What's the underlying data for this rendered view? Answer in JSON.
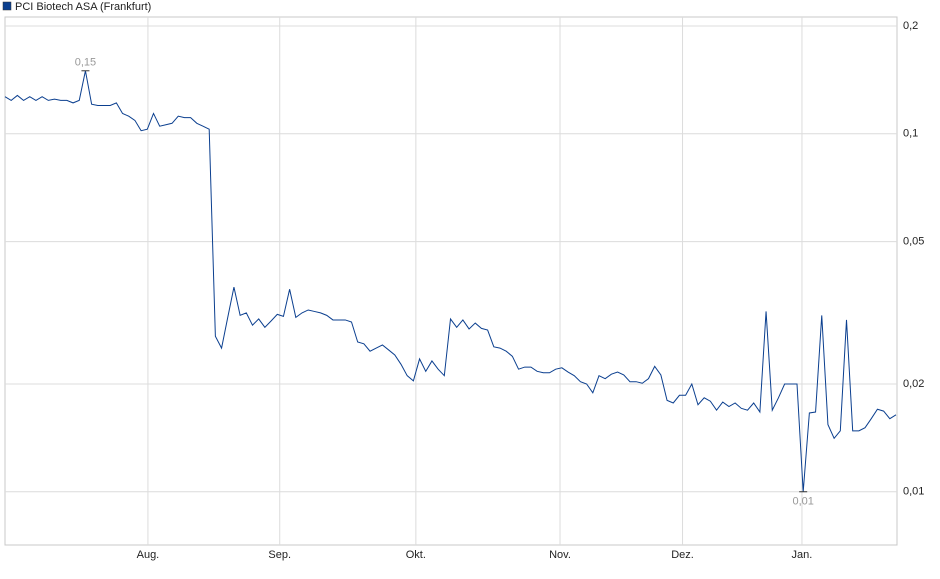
{
  "chart_data": {
    "type": "line",
    "series": [
      {
        "name": "PCI Biotech ASA (Frankfurt)",
        "color": "#0b3f8f",
        "x": [
          0,
          1,
          2,
          3,
          4,
          5,
          6,
          7,
          8,
          9,
          10,
          11,
          12,
          13,
          14,
          15,
          16,
          17,
          18,
          19,
          20,
          21,
          22,
          23,
          24,
          25,
          26,
          27,
          28,
          29,
          30,
          31,
          32,
          33,
          34,
          35,
          36,
          37,
          38,
          39,
          40,
          41,
          42,
          43,
          44,
          45,
          46,
          47,
          48,
          49,
          50,
          51,
          52,
          53,
          54,
          55,
          56,
          57,
          58,
          59,
          60,
          61,
          62,
          63,
          64,
          65,
          66,
          67,
          68,
          69,
          70,
          71,
          72,
          73,
          74,
          75,
          76,
          77,
          78,
          79,
          80,
          81,
          82,
          83,
          84,
          85,
          86,
          87,
          88,
          89,
          90,
          91,
          92,
          93,
          94,
          95,
          96,
          97,
          98,
          99,
          100,
          101,
          102,
          103,
          104,
          105,
          106,
          107,
          108,
          109,
          110,
          111,
          112,
          113,
          114,
          115,
          116,
          117,
          118,
          119,
          120,
          121,
          122,
          123,
          124,
          125,
          126,
          127,
          128,
          129,
          130,
          131,
          132,
          133,
          134,
          135,
          136,
          137,
          138,
          139,
          140,
          141,
          142,
          143,
          144
        ],
        "values": [
          0.127,
          0.124,
          0.128,
          0.124,
          0.127,
          0.124,
          0.127,
          0.124,
          0.125,
          0.124,
          0.124,
          0.122,
          0.124,
          0.15,
          0.121,
          0.12,
          0.12,
          0.12,
          0.122,
          0.114,
          0.112,
          0.109,
          0.102,
          0.103,
          0.114,
          0.105,
          0.106,
          0.107,
          0.112,
          0.111,
          0.111,
          0.107,
          0.105,
          0.103,
          0.0272,
          0.0252,
          0.0307,
          0.0373,
          0.0311,
          0.0316,
          0.0292,
          0.0304,
          0.0288,
          0.03,
          0.0313,
          0.0309,
          0.0368,
          0.0307,
          0.0316,
          0.0322,
          0.0319,
          0.0316,
          0.0311,
          0.0302,
          0.0302,
          0.0302,
          0.0298,
          0.0262,
          0.0259,
          0.0247,
          0.0252,
          0.0257,
          0.0249,
          0.0241,
          0.0227,
          0.0211,
          0.0204,
          0.0235,
          0.0217,
          0.0232,
          0.022,
          0.0211,
          0.0304,
          0.0288,
          0.0302,
          0.0285,
          0.0296,
          0.0286,
          0.0283,
          0.0254,
          0.0252,
          0.0247,
          0.0239,
          0.022,
          0.0223,
          0.0223,
          0.0217,
          0.0215,
          0.0215,
          0.022,
          0.0222,
          0.0216,
          0.0211,
          0.0203,
          0.02,
          0.0189,
          0.0211,
          0.0207,
          0.0213,
          0.0216,
          0.0212,
          0.0203,
          0.0203,
          0.0201,
          0.0207,
          0.0224,
          0.0212,
          0.018,
          0.0177,
          0.0186,
          0.0186,
          0.02,
          0.0175,
          0.0183,
          0.0179,
          0.0169,
          0.0178,
          0.0173,
          0.0177,
          0.0171,
          0.0169,
          0.0177,
          0.0167,
          0.0319,
          0.0169,
          0.0183,
          0.02,
          0.02,
          0.02,
          0.01,
          0.0166,
          0.0167,
          0.0311,
          0.0154,
          0.0141,
          0.0148,
          0.0302,
          0.0148,
          0.0148,
          0.0151,
          0.016,
          0.017,
          0.0168,
          0.016,
          0.0164
        ],
        "value_labels": [
          null,
          null,
          null,
          null,
          null,
          null,
          null,
          null,
          null,
          null,
          null,
          null,
          null,
          "0,15",
          null,
          null,
          null,
          null,
          null,
          null,
          null,
          null,
          null,
          null,
          null,
          null,
          null,
          null,
          null,
          null,
          null,
          null,
          null,
          null,
          null,
          null,
          null,
          null,
          null,
          null,
          null,
          null,
          null,
          null,
          null,
          null,
          null,
          null,
          null,
          null,
          null,
          null,
          null,
          null,
          null,
          null,
          null,
          null,
          null,
          null,
          null,
          null,
          null,
          null,
          null,
          null,
          null,
          null,
          null,
          null,
          null,
          null,
          null,
          null,
          null,
          null,
          null,
          null,
          null,
          null,
          null,
          null,
          null,
          null,
          null,
          null,
          null,
          null,
          null,
          null,
          null,
          null,
          null,
          null,
          null,
          null,
          null,
          null,
          null,
          null,
          null,
          null,
          null,
          null,
          null,
          null,
          null,
          null,
          null,
          null,
          null,
          null,
          null,
          null,
          null,
          null,
          null,
          null,
          null,
          null,
          null,
          null,
          null,
          null,
          null,
          null,
          null,
          null,
          null,
          "0,01",
          null,
          null,
          null,
          null,
          null,
          null,
          null,
          null,
          null,
          null,
          null,
          null,
          null,
          null,
          null
        ]
      }
    ],
    "xlim": [
      0,
      144
    ],
    "xticks": [
      {
        "value": 23.1,
        "label": "Aug."
      },
      {
        "value": 44.4,
        "label": "Sep."
      },
      {
        "value": 66.4,
        "label": "Okt."
      },
      {
        "value": 89.7,
        "label": "Nov."
      },
      {
        "value": 109.5,
        "label": "Dez."
      },
      {
        "value": 128.8,
        "label": "Jan."
      }
    ],
    "ylim": [
      0.0071,
      0.212
    ],
    "yticks": [
      {
        "value": 0.01,
        "label": "0,01"
      },
      {
        "value": 0.02,
        "label": "0,02"
      },
      {
        "value": 0.05,
        "label": "0,05"
      },
      {
        "value": 0.1,
        "label": "0,1"
      },
      {
        "value": 0.2,
        "label": "0,2"
      }
    ],
    "log_y": true,
    "grid": true,
    "legend": "top-left"
  }
}
